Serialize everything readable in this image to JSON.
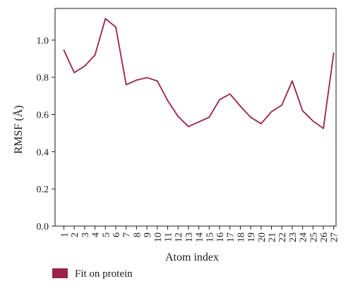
{
  "chart_data": {
    "type": "line",
    "title": "",
    "xlabel": "Atom index",
    "ylabel": "RMSF (Å)",
    "categories": [
      "1",
      "2",
      "3",
      "4",
      "5",
      "6",
      "7",
      "8",
      "9",
      "10",
      "11",
      "12",
      "13",
      "14",
      "15",
      "16",
      "17",
      "18",
      "19",
      "20",
      "21",
      "22",
      "23",
      "24",
      "25",
      "26",
      "27"
    ],
    "series": [
      {
        "name": "Fit on protein",
        "color": "#9b2146",
        "values": [
          0.945,
          0.825,
          0.86,
          0.92,
          1.115,
          1.07,
          0.76,
          0.785,
          0.798,
          0.78,
          0.675,
          0.59,
          0.535,
          0.56,
          0.585,
          0.68,
          0.71,
          0.645,
          0.585,
          0.55,
          0.615,
          0.65,
          0.78,
          0.62,
          0.565,
          0.525,
          0.93
        ]
      }
    ],
    "yticks": [
      "0.0",
      "0.2",
      "0.4",
      "0.6",
      "0.8",
      "1.0"
    ],
    "ylim": [
      0,
      1.17
    ],
    "grid": false,
    "legend_position": "bottom-left"
  }
}
